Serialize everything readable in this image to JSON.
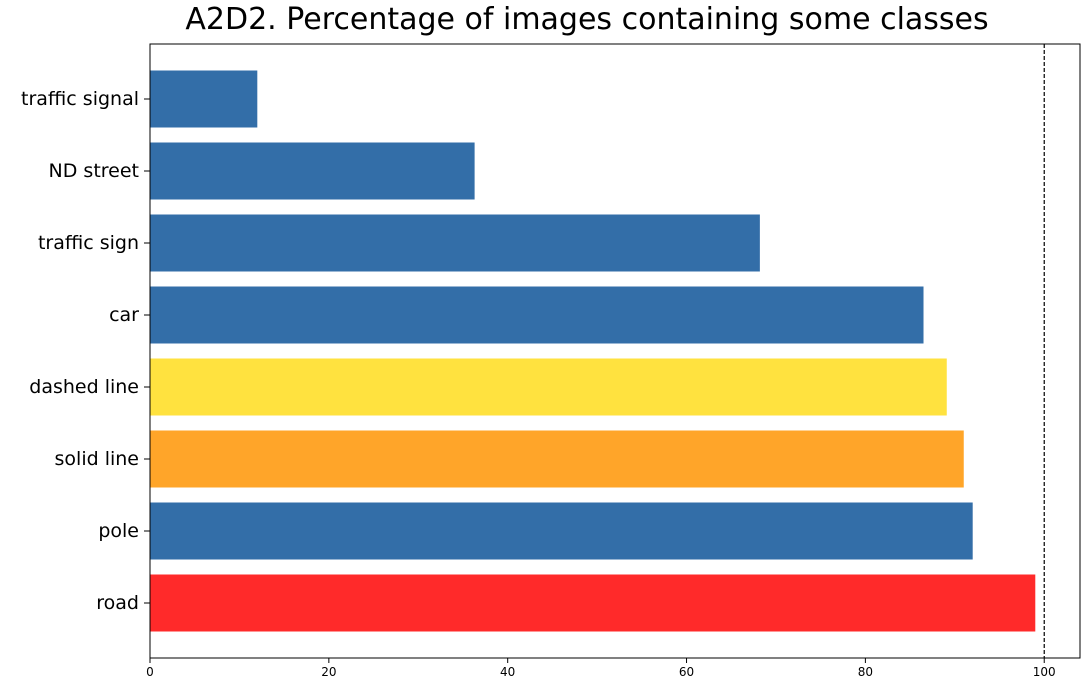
{
  "chart_data": {
    "type": "bar",
    "orientation": "horizontal",
    "title": "A2D2. Percentage of images containing some classes",
    "xlabel": "",
    "ylabel": "",
    "categories": [
      "traffic signal",
      "ND street",
      "traffic sign",
      "car",
      "dashed line",
      "solid line",
      "pole",
      "road"
    ],
    "values": [
      12,
      36.3,
      68.2,
      86.5,
      89.1,
      91,
      92,
      99
    ],
    "bar_colors": [
      "#336ea8",
      "#336ea8",
      "#336ea8",
      "#336ea8",
      "#ffe23f",
      "#ffa529",
      "#336ea8",
      "#ff2a2a"
    ],
    "xlim": [
      0,
      104
    ],
    "xticks": [
      0,
      20,
      40,
      60,
      80,
      100
    ],
    "reference_line": {
      "x": 100,
      "style": "dashed",
      "color": "#000000"
    },
    "grid": false,
    "legend": "none"
  }
}
